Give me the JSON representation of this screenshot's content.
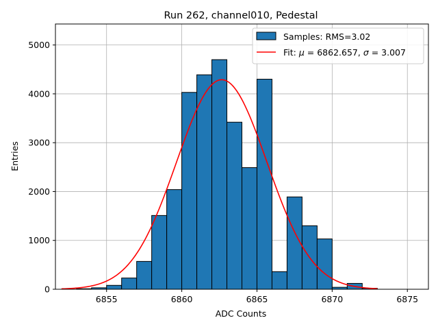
{
  "chart_data": {
    "type": "bar",
    "title": "Run 262, channel010, Pedestal",
    "xlabel": "ADC Counts",
    "ylabel": "Entries",
    "xlim": [
      6851.6,
      6876.4
    ],
    "ylim": [
      0,
      5430
    ],
    "xticks": [
      6855,
      6860,
      6865,
      6870,
      6875
    ],
    "yticks": [
      0,
      1000,
      2000,
      3000,
      4000,
      5000
    ],
    "grid": true,
    "legend_location": "top-right",
    "histogram": {
      "name": "Samples: RMS=3.02",
      "color": "#1f77b4",
      "bin_width": 1,
      "bin_starts": [
        6853,
        6854,
        6855,
        6856,
        6857,
        6858,
        6859,
        6860,
        6861,
        6862,
        6863,
        6864,
        6865,
        6866,
        6867,
        6868,
        6869,
        6870,
        6871,
        6872
      ],
      "values": [
        10,
        30,
        80,
        230,
        570,
        1510,
        2040,
        4030,
        4390,
        4700,
        3420,
        2490,
        4300,
        360,
        1890,
        1300,
        1030,
        40,
        120,
        20
      ]
    },
    "fit": {
      "name_prefix": "Fit: ",
      "mu_symbol": "μ",
      "mu_text": " = 6862.657, ",
      "sigma_symbol": "σ",
      "sigma_text": " = 3.007",
      "color": "#ff0000",
      "mu": 6862.657,
      "sigma": 3.007,
      "amplitude": 4290,
      "x_range": [
        6852,
        6873
      ]
    }
  }
}
